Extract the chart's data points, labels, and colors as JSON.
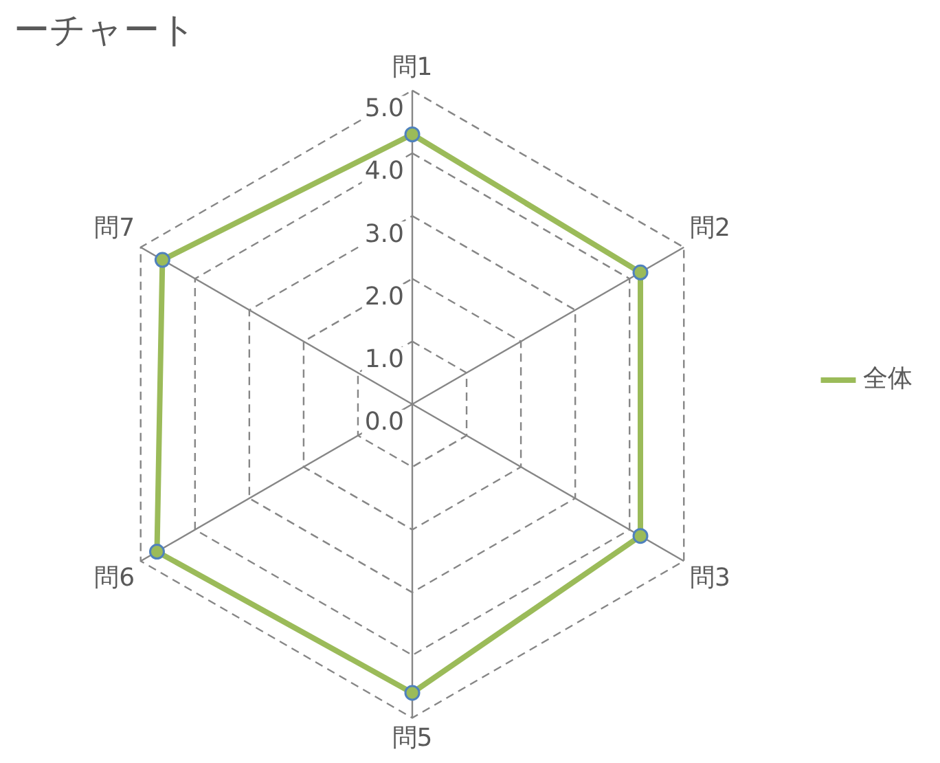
{
  "chart_data": {
    "type": "radar",
    "title": "ーチャート",
    "categories": [
      "問1",
      "問2",
      "問3",
      "問5",
      "問6",
      "問7"
    ],
    "series": [
      {
        "name": "全体",
        "color": "#9bbb59",
        "values": [
          4.3,
          4.2,
          4.2,
          4.6,
          4.7,
          4.6
        ]
      }
    ],
    "ylim": [
      0,
      5
    ],
    "yticks": [
      {
        "value": 0,
        "label": "0.0"
      },
      {
        "value": 1,
        "label": "1.0"
      },
      {
        "value": 2,
        "label": "2.0"
      },
      {
        "value": 3,
        "label": "3.0"
      },
      {
        "value": 4,
        "label": "4.0"
      },
      {
        "value": 5,
        "label": "5.0"
      }
    ],
    "grid": true,
    "legend": "right",
    "marker": "circle",
    "line_style": "solid"
  }
}
